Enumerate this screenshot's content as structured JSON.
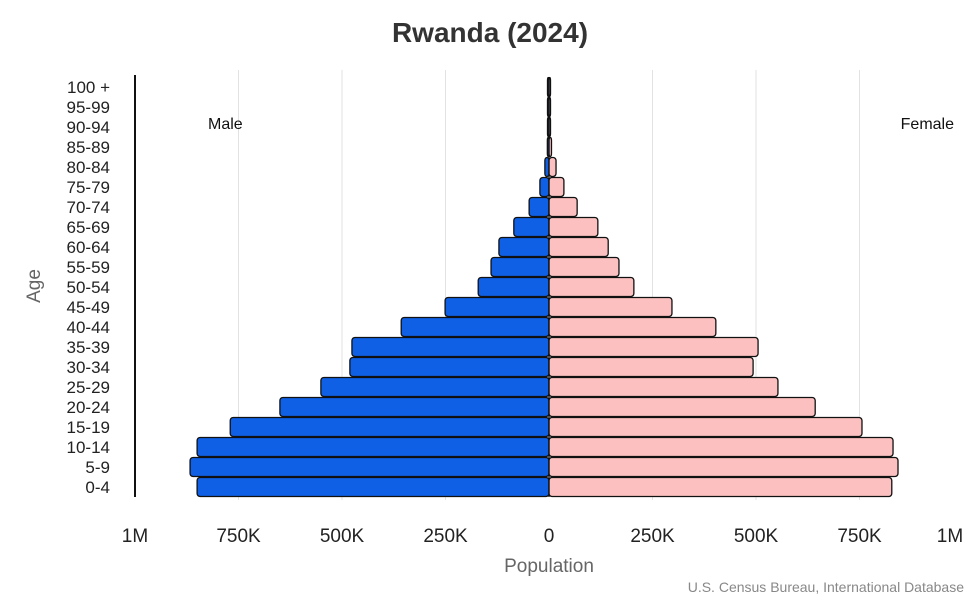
{
  "chart_data": {
    "type": "bar",
    "subtype": "population-pyramid",
    "title": "Rwanda (2024)",
    "xlabel": "Population",
    "ylabel": "Age",
    "source": "U.S. Census Bureau, International Database",
    "x_tick_labels": [
      "1M",
      "750K",
      "500K",
      "250K",
      "0",
      "250K",
      "500K",
      "750K",
      "1M"
    ],
    "xlim": [
      -1000000,
      1000000
    ],
    "grid": "vertical",
    "categories": [
      "0-4",
      "5-9",
      "10-14",
      "15-19",
      "20-24",
      "25-29",
      "30-34",
      "35-39",
      "40-44",
      "45-49",
      "50-54",
      "55-59",
      "60-64",
      "65-69",
      "70-74",
      "75-79",
      "80-84",
      "85-89",
      "90-94",
      "95-99",
      "100 +"
    ],
    "series": [
      {
        "name": "Male",
        "color": "#1060e6",
        "values": [
          850000,
          867000,
          850000,
          770000,
          650000,
          551000,
          481000,
          476000,
          357000,
          251000,
          171000,
          140000,
          121000,
          85000,
          48000,
          22000,
          10000,
          4000,
          2000,
          1000,
          300
        ]
      },
      {
        "name": "Female",
        "color": "#fcc0c0",
        "values": [
          828000,
          843000,
          831000,
          756000,
          643000,
          553000,
          493000,
          505000,
          403000,
          297000,
          205000,
          169000,
          143000,
          118000,
          68000,
          36000,
          17000,
          6000,
          3000,
          1000,
          300
        ]
      }
    ]
  }
}
